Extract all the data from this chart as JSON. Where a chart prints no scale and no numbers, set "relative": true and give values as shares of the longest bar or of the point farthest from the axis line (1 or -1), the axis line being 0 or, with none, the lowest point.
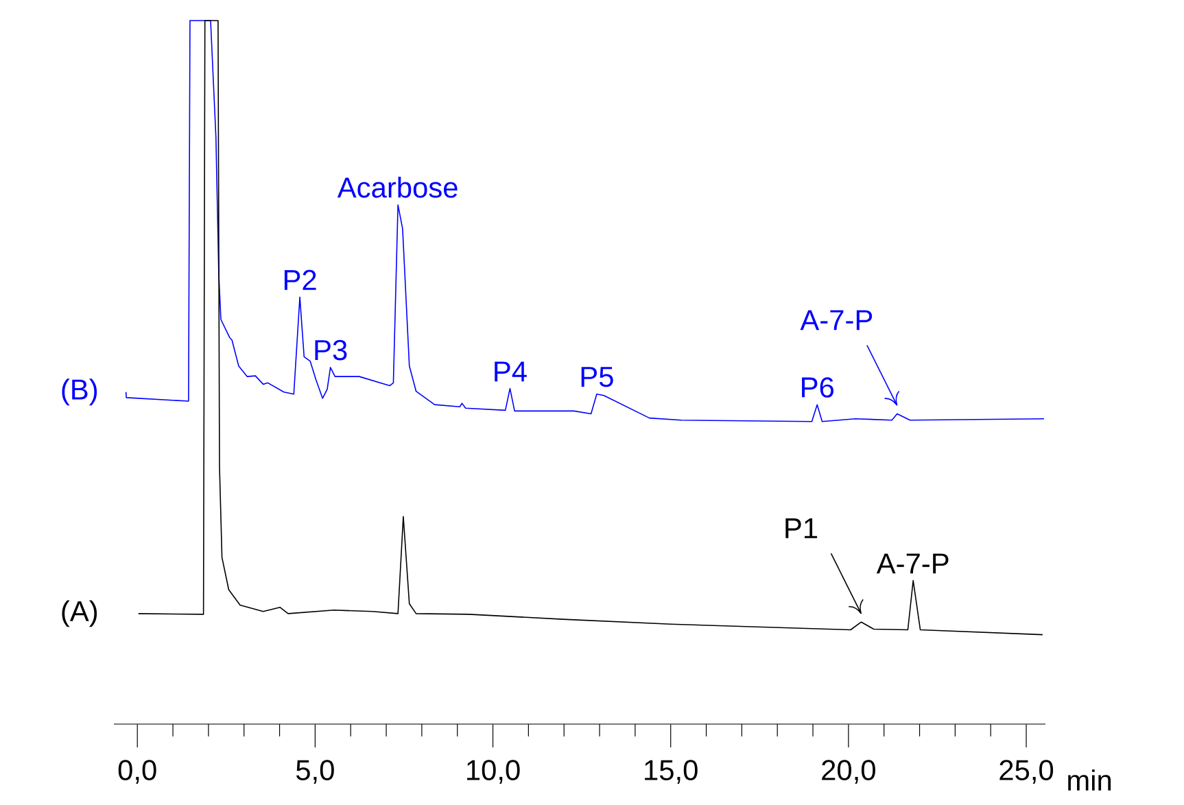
{
  "chart_data": {
    "type": "line",
    "relative": true,
    "xlabel": "min",
    "xlim": [
      -0.66,
      25.54
    ],
    "xticks": [
      {
        "value": 0,
        "label": "0,0"
      },
      {
        "value": 1,
        "label": null
      },
      {
        "value": 2,
        "label": null
      },
      {
        "value": 3,
        "label": null
      },
      {
        "value": 4,
        "label": null
      },
      {
        "value": 5,
        "label": "5,0"
      },
      {
        "value": 6,
        "label": null
      },
      {
        "value": 7,
        "label": null
      },
      {
        "value": 8,
        "label": null
      },
      {
        "value": 9,
        "label": null
      },
      {
        "value": 10,
        "label": "10,0"
      },
      {
        "value": 11,
        "label": null
      },
      {
        "value": 12,
        "label": null
      },
      {
        "value": 13,
        "label": null
      },
      {
        "value": 14,
        "label": null
      },
      {
        "value": 15,
        "label": "15,0"
      },
      {
        "value": 16,
        "label": null
      },
      {
        "value": 17,
        "label": null
      },
      {
        "value": 18,
        "label": null
      },
      {
        "value": 19,
        "label": null
      },
      {
        "value": 20,
        "label": "20,0"
      },
      {
        "value": 21,
        "label": null
      },
      {
        "value": 22,
        "label": null
      },
      {
        "value": 23,
        "label": null
      },
      {
        "value": 24,
        "label": null
      },
      {
        "value": 25,
        "label": "25,0"
      }
    ],
    "series": [
      {
        "name": "(B)",
        "color": "#0000ff",
        "x": [
          -0.32,
          -0.31,
          1.44,
          1.48,
          2.06,
          2.21,
          2.29,
          2.35,
          2.6,
          2.66,
          2.85,
          3.09,
          3.32,
          3.54,
          3.67,
          4.12,
          4.4,
          4.57,
          4.69,
          4.86,
          5.02,
          5.21,
          5.34,
          5.43,
          5.56,
          6.24,
          7.1,
          7.2,
          7.33,
          7.46,
          7.65,
          7.84,
          8.36,
          9.07,
          9.13,
          9.23,
          10.35,
          10.48,
          10.61,
          11.64,
          12.28,
          12.76,
          12.92,
          13.12,
          13.76,
          14.4,
          15.3,
          18.97,
          19.12,
          19.26,
          20.19,
          21.22,
          21.37,
          21.73,
          25.5
        ],
        "values": [
          0.472,
          0.464,
          0.459,
          1,
          1,
          0.834,
          0.639,
          0.575,
          0.549,
          0.546,
          0.509,
          0.494,
          0.495,
          0.483,
          0.485,
          0.472,
          0.469,
          0.607,
          0.522,
          0.516,
          0.49,
          0.463,
          0.476,
          0.507,
          0.494,
          0.494,
          0.481,
          0.485,
          0.738,
          0.704,
          0.509,
          0.473,
          0.454,
          0.451,
          0.456,
          0.449,
          0.446,
          0.477,
          0.445,
          0.445,
          0.445,
          0.441,
          0.469,
          0.467,
          0.451,
          0.435,
          0.432,
          0.43,
          0.454,
          0.43,
          0.434,
          0.432,
          0.441,
          0.432,
          0.434
        ]
      },
      {
        "name": "(A)",
        "color": "#000000",
        "x": [
          0.03,
          1.86,
          1.9,
          2.27,
          2.31,
          2.38,
          2.57,
          2.89,
          3.54,
          4.01,
          4.24,
          5.53,
          6.62,
          7.33,
          7.48,
          7.65,
          7.84,
          9.32,
          11.96,
          15,
          20.06,
          20.36,
          20.71,
          21.67,
          21.82,
          22.02,
          25.46
        ],
        "values": [
          0.157,
          0.156,
          1,
          1,
          0.367,
          0.237,
          0.191,
          0.169,
          0.16,
          0.166,
          0.157,
          0.162,
          0.16,
          0.157,
          0.295,
          0.171,
          0.157,
          0.156,
          0.149,
          0.142,
          0.134,
          0.145,
          0.135,
          0.134,
          0.204,
          0.134,
          0.127
        ]
      }
    ],
    "annotations": [
      {
        "text": "P2",
        "x": 4.57,
        "y": 0.607
      },
      {
        "text": "P3",
        "x": 5.43,
        "y": 0.507
      },
      {
        "text": "Acarbose",
        "x": 7.33,
        "y": 0.738
      },
      {
        "text": "P4",
        "x": 10.48,
        "y": 0.477
      },
      {
        "text": "P5",
        "x": 12.92,
        "y": 0.469
      },
      {
        "text": "P6",
        "x": 19.12,
        "y": 0.454
      },
      {
        "text": "A-7-P",
        "x": 21.37,
        "y": 0.441
      },
      {
        "text": "P1",
        "x": 20.36,
        "y": 0.145
      },
      {
        "text": "A-7-P",
        "x": 21.82,
        "y": 0.204
      }
    ]
  }
}
